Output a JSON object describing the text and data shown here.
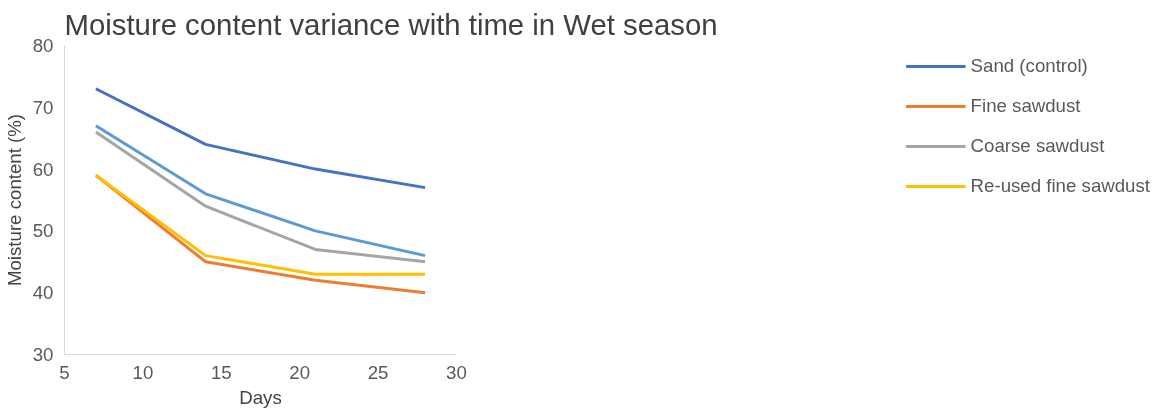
{
  "chart_data": {
    "type": "line",
    "title": "Moisture content variance with time in Wet season",
    "xlabel": "Days",
    "ylabel": "Moisture content (%)",
    "x": [
      7,
      14,
      21,
      28
    ],
    "series": [
      {
        "name": "Sand (control)",
        "color": "#4472c4",
        "values": [
          73,
          64,
          60,
          57
        ]
      },
      {
        "color": "#5b9bd5",
        "values": [
          67,
          56,
          50,
          46
        ]
      },
      {
        "name": "Fine sawdust",
        "color": "#ed7d31",
        "values": [
          59,
          45,
          42,
          40
        ]
      },
      {
        "name": "Coarse sawdust",
        "color": "#a5a5a5",
        "values": [
          66,
          54,
          47,
          45
        ]
      },
      {
        "name": "Re-used fine sawdust",
        "color": "#ffc000",
        "values": [
          59,
          46,
          43,
          43
        ]
      }
    ],
    "xlim": [
      5,
      30
    ],
    "xticks": [
      5,
      10,
      15,
      20,
      25,
      30
    ],
    "ylim": [
      30,
      80
    ],
    "yticks": [
      30,
      40,
      50,
      60,
      70,
      80
    ],
    "grid": false,
    "legend": "right",
    "marker": "none",
    "line_style": "solid"
  }
}
